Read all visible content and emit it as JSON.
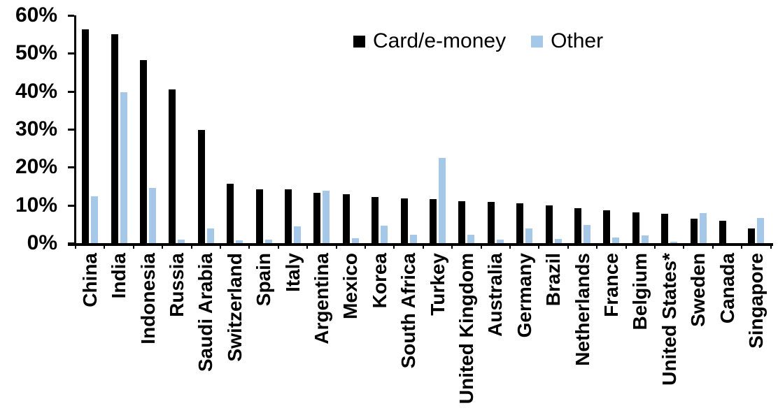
{
  "chart_data": {
    "type": "bar",
    "title": "",
    "xlabel": "",
    "ylabel": "",
    "grid": false,
    "legend_position": "top-center-inside",
    "ylim": [
      0,
      60
    ],
    "yticks": [
      0,
      10,
      20,
      30,
      40,
      50,
      60
    ],
    "ytick_labels": [
      "0%",
      "10%",
      "20%",
      "30%",
      "40%",
      "50%",
      "60%"
    ],
    "categories": [
      "China",
      "India",
      "Indonesia",
      "Russia",
      "Saudi Arabia",
      "Switzerland",
      "Spain",
      "Italy",
      "Argentina",
      "Mexico",
      "Korea",
      "South Africa",
      "Turkey",
      "United Kingdom",
      "Australia",
      "Germany",
      "Brazil",
      "Netherlands",
      "France",
      "Belgium",
      "United States*",
      "Sweden",
      "Canada",
      "Singapore"
    ],
    "series": [
      {
        "name": "Card/e-money",
        "color": "#000000",
        "values": [
          56.3,
          55.0,
          48.3,
          40.5,
          29.8,
          15.6,
          14.1,
          14.1,
          13.3,
          12.9,
          12.2,
          11.7,
          11.6,
          11.0,
          10.8,
          10.5,
          10.0,
          9.2,
          8.6,
          8.1,
          7.8,
          6.5,
          5.9,
          3.9
        ]
      },
      {
        "name": "Other",
        "color": "#A5C8E9",
        "values": [
          12.3,
          39.7,
          14.5,
          0.9,
          3.8,
          0.8,
          0.9,
          4.5,
          13.8,
          1.2,
          4.6,
          2.3,
          22.5,
          2.3,
          0.9,
          3.9,
          1.1,
          4.8,
          1.5,
          2.0,
          0.3,
          8.0,
          0.0,
          6.6
        ]
      }
    ],
    "axis_color": "#000000"
  }
}
